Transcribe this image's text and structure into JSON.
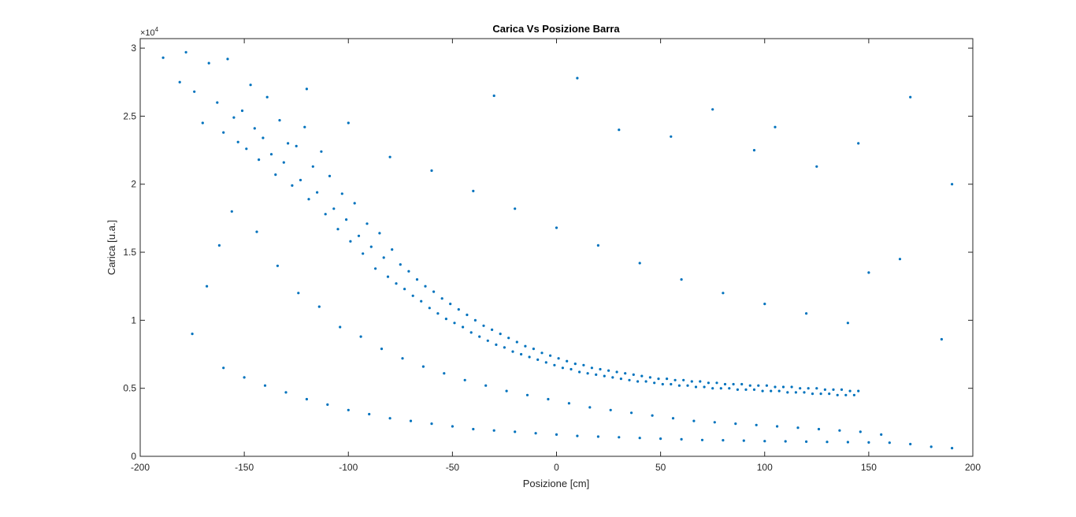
{
  "chart_data": {
    "type": "scatter",
    "title": "Carica Vs Posizione Barra",
    "xlabel": "Posizione [cm]",
    "ylabel": "Carica [u.a.]",
    "xlim": [
      -200,
      200
    ],
    "ylim": [
      0,
      30700
    ],
    "x_ticks": [
      -200,
      -150,
      -100,
      -50,
      0,
      50,
      100,
      150,
      200
    ],
    "x_tick_labels": [
      "-200",
      "-150",
      "-100",
      "-50",
      "0",
      "50",
      "100",
      "150",
      "200"
    ],
    "y_ticks": [
      0,
      5000,
      10000,
      15000,
      20000,
      25000,
      30000
    ],
    "y_tick_labels": [
      "0",
      "0.5",
      "1",
      "1.5",
      "2",
      "2.5",
      "3"
    ],
    "y_exponent_base": "×10",
    "y_exponent": "4",
    "grid": false,
    "marker_color": "#0072bd",
    "series": [
      {
        "description": "Approximate representative sample of the dense point cloud",
        "points": [
          [
            -189,
            29300
          ],
          [
            -181,
            27500
          ],
          [
            -178,
            29700
          ],
          [
            -174,
            26800
          ],
          [
            -170,
            24500
          ],
          [
            -167,
            28900
          ],
          [
            -163,
            26000
          ],
          [
            -160,
            23800
          ],
          [
            -158,
            29200
          ],
          [
            -155,
            24900
          ],
          [
            -153,
            23100
          ],
          [
            -151,
            25400
          ],
          [
            -149,
            22600
          ],
          [
            -147,
            27300
          ],
          [
            -145,
            24100
          ],
          [
            -143,
            21800
          ],
          [
            -141,
            23400
          ],
          [
            -139,
            26400
          ],
          [
            -137,
            22200
          ],
          [
            -135,
            20700
          ],
          [
            -133,
            24700
          ],
          [
            -131,
            21600
          ],
          [
            -129,
            23000
          ],
          [
            -127,
            19900
          ],
          [
            -125,
            22800
          ],
          [
            -123,
            20300
          ],
          [
            -121,
            24200
          ],
          [
            -119,
            18900
          ],
          [
            -117,
            21300
          ],
          [
            -115,
            19400
          ],
          [
            -113,
            22400
          ],
          [
            -111,
            17800
          ],
          [
            -109,
            20600
          ],
          [
            -107,
            18200
          ],
          [
            -105,
            16700
          ],
          [
            -103,
            19300
          ],
          [
            -101,
            17400
          ],
          [
            -99,
            15800
          ],
          [
            -97,
            18600
          ],
          [
            -95,
            16200
          ],
          [
            -93,
            14900
          ],
          [
            -91,
            17100
          ],
          [
            -89,
            15400
          ],
          [
            -87,
            13800
          ],
          [
            -85,
            16400
          ],
          [
            -83,
            14600
          ],
          [
            -81,
            13200
          ],
          [
            -79,
            15200
          ],
          [
            -77,
            12700
          ],
          [
            -75,
            14100
          ],
          [
            -73,
            12300
          ],
          [
            -71,
            13600
          ],
          [
            -69,
            11800
          ],
          [
            -67,
            13000
          ],
          [
            -65,
            11400
          ],
          [
            -63,
            12500
          ],
          [
            -61,
            10900
          ],
          [
            -59,
            12100
          ],
          [
            -57,
            10500
          ],
          [
            -55,
            11600
          ],
          [
            -53,
            10100
          ],
          [
            -51,
            11200
          ],
          [
            -49,
            9800
          ],
          [
            -47,
            10800
          ],
          [
            -45,
            9500
          ],
          [
            -43,
            10400
          ],
          [
            -41,
            9100
          ],
          [
            -39,
            10000
          ],
          [
            -37,
            8800
          ],
          [
            -35,
            9600
          ],
          [
            -33,
            8500
          ],
          [
            -31,
            9300
          ],
          [
            -29,
            8200
          ],
          [
            -27,
            9000
          ],
          [
            -25,
            8000
          ],
          [
            -23,
            8700
          ],
          [
            -21,
            7700
          ],
          [
            -19,
            8400
          ],
          [
            -17,
            7500
          ],
          [
            -15,
            8100
          ],
          [
            -13,
            7300
          ],
          [
            -11,
            7900
          ],
          [
            -9,
            7100
          ],
          [
            -7,
            7600
          ],
          [
            -5,
            6900
          ],
          [
            -3,
            7400
          ],
          [
            -1,
            6700
          ],
          [
            1,
            7200
          ],
          [
            3,
            6500
          ],
          [
            5,
            7000
          ],
          [
            7,
            6400
          ],
          [
            9,
            6800
          ],
          [
            11,
            6200
          ],
          [
            13,
            6700
          ],
          [
            15,
            6100
          ],
          [
            17,
            6500
          ],
          [
            19,
            6000
          ],
          [
            21,
            6400
          ],
          [
            23,
            5900
          ],
          [
            25,
            6300
          ],
          [
            27,
            5800
          ],
          [
            29,
            6200
          ],
          [
            31,
            5700
          ],
          [
            33,
            6100
          ],
          [
            35,
            5600
          ],
          [
            37,
            6000
          ],
          [
            39,
            5500
          ],
          [
            41,
            5900
          ],
          [
            43,
            5500
          ],
          [
            45,
            5800
          ],
          [
            47,
            5400
          ],
          [
            49,
            5700
          ],
          [
            51,
            5300
          ],
          [
            53,
            5700
          ],
          [
            55,
            5300
          ],
          [
            57,
            5600
          ],
          [
            59,
            5200
          ],
          [
            61,
            5600
          ],
          [
            63,
            5200
          ],
          [
            65,
            5500
          ],
          [
            67,
            5100
          ],
          [
            69,
            5500
          ],
          [
            71,
            5100
          ],
          [
            73,
            5400
          ],
          [
            75,
            5000
          ],
          [
            77,
            5400
          ],
          [
            79,
            5000
          ],
          [
            81,
            5300
          ],
          [
            83,
            5000
          ],
          [
            85,
            5300
          ],
          [
            87,
            4900
          ],
          [
            89,
            5300
          ],
          [
            91,
            4900
          ],
          [
            93,
            5200
          ],
          [
            95,
            4900
          ],
          [
            97,
            5200
          ],
          [
            99,
            4800
          ],
          [
            101,
            5200
          ],
          [
            103,
            4800
          ],
          [
            105,
            5100
          ],
          [
            107,
            4800
          ],
          [
            109,
            5100
          ],
          [
            111,
            4700
          ],
          [
            113,
            5100
          ],
          [
            115,
            4700
          ],
          [
            117,
            5000
          ],
          [
            119,
            4700
          ],
          [
            121,
            5000
          ],
          [
            123,
            4600
          ],
          [
            125,
            5000
          ],
          [
            127,
            4600
          ],
          [
            129,
            4900
          ],
          [
            131,
            4600
          ],
          [
            133,
            4900
          ],
          [
            135,
            4500
          ],
          [
            137,
            4900
          ],
          [
            139,
            4500
          ],
          [
            141,
            4800
          ],
          [
            143,
            4500
          ],
          [
            145,
            4800
          ],
          [
            -160,
            6500
          ],
          [
            -150,
            5800
          ],
          [
            -140,
            5200
          ],
          [
            -130,
            4700
          ],
          [
            -120,
            4200
          ],
          [
            -110,
            3800
          ],
          [
            -100,
            3400
          ],
          [
            -90,
            3100
          ],
          [
            -80,
            2800
          ],
          [
            -70,
            2600
          ],
          [
            -60,
            2400
          ],
          [
            -50,
            2200
          ],
          [
            -40,
            2000
          ],
          [
            -30,
            1900
          ],
          [
            -20,
            1800
          ],
          [
            -10,
            1700
          ],
          [
            0,
            1600
          ],
          [
            10,
            1500
          ],
          [
            20,
            1450
          ],
          [
            30,
            1400
          ],
          [
            40,
            1350
          ],
          [
            50,
            1300
          ],
          [
            60,
            1250
          ],
          [
            70,
            1200
          ],
          [
            80,
            1180
          ],
          [
            90,
            1150
          ],
          [
            100,
            1120
          ],
          [
            110,
            1100
          ],
          [
            120,
            1080
          ],
          [
            130,
            1060
          ],
          [
            140,
            1040
          ],
          [
            150,
            1020
          ],
          [
            160,
            1000
          ],
          [
            170,
            900
          ],
          [
            180,
            700
          ],
          [
            190,
            600
          ],
          [
            -175,
            9000
          ],
          [
            -168,
            12500
          ],
          [
            -162,
            15500
          ],
          [
            -156,
            18000
          ],
          [
            -144,
            16500
          ],
          [
            -134,
            14000
          ],
          [
            -124,
            12000
          ],
          [
            -114,
            11000
          ],
          [
            -104,
            9500
          ],
          [
            -94,
            8800
          ],
          [
            -84,
            7900
          ],
          [
            -74,
            7200
          ],
          [
            -64,
            6600
          ],
          [
            -54,
            6100
          ],
          [
            -44,
            5600
          ],
          [
            -34,
            5200
          ],
          [
            -24,
            4800
          ],
          [
            -14,
            4500
          ],
          [
            -4,
            4200
          ],
          [
            6,
            3900
          ],
          [
            16,
            3600
          ],
          [
            26,
            3400
          ],
          [
            36,
            3200
          ],
          [
            46,
            3000
          ],
          [
            56,
            2800
          ],
          [
            66,
            2600
          ],
          [
            76,
            2500
          ],
          [
            86,
            2400
          ],
          [
            96,
            2300
          ],
          [
            106,
            2200
          ],
          [
            116,
            2100
          ],
          [
            126,
            2000
          ],
          [
            136,
            1900
          ],
          [
            146,
            1800
          ],
          [
            156,
            1600
          ],
          [
            -120,
            27000
          ],
          [
            -100,
            24500
          ],
          [
            -80,
            22000
          ],
          [
            -60,
            21000
          ],
          [
            -40,
            19500
          ],
          [
            -20,
            18200
          ],
          [
            0,
            16800
          ],
          [
            20,
            15500
          ],
          [
            40,
            14200
          ],
          [
            60,
            13000
          ],
          [
            80,
            12000
          ],
          [
            100,
            11200
          ],
          [
            120,
            10500
          ],
          [
            140,
            9800
          ],
          [
            -30,
            26500
          ],
          [
            10,
            27800
          ],
          [
            30,
            24000
          ],
          [
            55,
            23500
          ],
          [
            75,
            25500
          ],
          [
            95,
            22500
          ],
          [
            105,
            24200
          ],
          [
            125,
            21300
          ],
          [
            145,
            23000
          ],
          [
            150,
            13500
          ],
          [
            165,
            14500
          ],
          [
            170,
            26400
          ],
          [
            185,
            8600
          ],
          [
            190,
            20000
          ]
        ]
      }
    ]
  }
}
